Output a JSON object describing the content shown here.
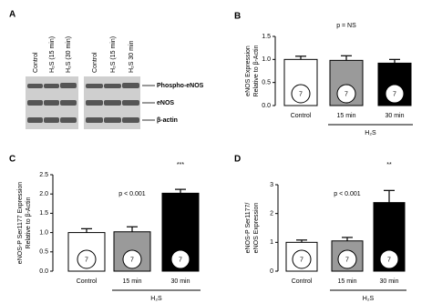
{
  "blot": {
    "panel": "A",
    "lanes": [
      "Control",
      "H₂S (15 min)",
      "H₂S (30 min)",
      "Control",
      "H₂S (15 min)",
      "H₂S 30 min"
    ],
    "rows": [
      "Phospho-eNOS",
      "eNOS",
      "β-actin"
    ]
  },
  "chart_data": [
    {
      "type": "bar",
      "panel": "B",
      "ylabel": [
        "eNOS Expression",
        "Relative to β-Actin"
      ],
      "categories": [
        "Control",
        "15 min",
        "30 min"
      ],
      "group_label": "H₂S",
      "values": [
        1.0,
        0.98,
        0.92
      ],
      "errors": [
        0.07,
        0.1,
        0.08
      ],
      "n": [
        7,
        7,
        7
      ],
      "colors": [
        "#ffffff",
        "#9a9a9a",
        "#000000"
      ],
      "ylim": [
        0,
        1.5
      ],
      "yticks": [
        {
          "value": 0,
          "label": "0.0"
        },
        {
          "value": 0.5,
          "label": "0.5"
        },
        {
          "value": 1,
          "label": "1.0"
        },
        {
          "value": 1.5,
          "label": "1.5"
        }
      ],
      "annotations": [
        {
          "text": "p = NS"
        }
      ]
    },
    {
      "type": "bar",
      "panel": "C",
      "ylabel": [
        "eNOS-P Ser1177 Expression",
        "Relative to β-Actin"
      ],
      "categories": [
        "Control",
        "15 min",
        "30 min"
      ],
      "group_label": "H₂S",
      "values": [
        1.0,
        1.02,
        2.02
      ],
      "errors": [
        0.1,
        0.13,
        0.1
      ],
      "n": [
        7,
        7,
        7
      ],
      "colors": [
        "#ffffff",
        "#9a9a9a",
        "#000000"
      ],
      "ylim": [
        0,
        2.5
      ],
      "yticks": [
        {
          "value": 0,
          "label": "0.0"
        },
        {
          "value": 0.5,
          "label": "0.5"
        },
        {
          "value": 1,
          "label": "1.0"
        },
        {
          "value": 1.5,
          "label": "1.5"
        },
        {
          "value": 2,
          "label": "2.0"
        },
        {
          "value": 2.5,
          "label": "2.5"
        }
      ],
      "annotations": [
        {
          "text": "p < 0.001"
        },
        {
          "text": "***"
        }
      ]
    },
    {
      "type": "bar",
      "panel": "D",
      "ylabel": [
        "eNOS-P Ser1177/",
        "eNOS Expression"
      ],
      "categories": [
        "Control",
        "15 min",
        "30 min"
      ],
      "group_label": "H₂S",
      "values": [
        1.0,
        1.05,
        2.38
      ],
      "errors": [
        0.08,
        0.12,
        0.42
      ],
      "n": [
        7,
        7,
        7
      ],
      "colors": [
        "#ffffff",
        "#9a9a9a",
        "#000000"
      ],
      "ylim": [
        0,
        3
      ],
      "yticks": [
        0,
        1,
        2,
        3
      ],
      "annotations": [
        {
          "text": "p < 0.001"
        },
        {
          "text": "**"
        }
      ]
    }
  ]
}
